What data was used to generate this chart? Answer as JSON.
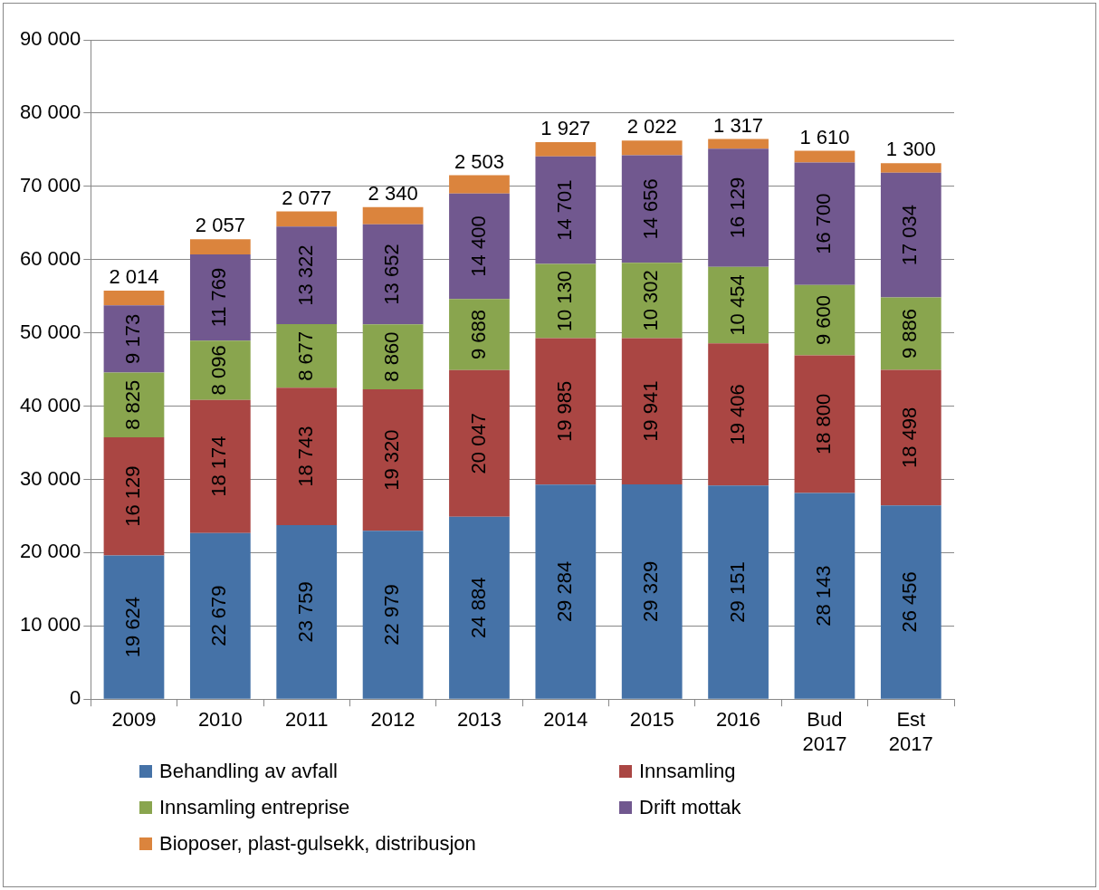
{
  "chart_data": {
    "type": "bar",
    "stacked": true,
    "data_labels": true,
    "grid": "y",
    "legend": "bottom",
    "categories": [
      "2009",
      "2010",
      "2011",
      "2012",
      "2013",
      "2014",
      "2015",
      "2016",
      "Bud 2017",
      "Est 2017"
    ],
    "ylim": [
      0,
      90000
    ],
    "yticks": [
      {
        "value": 0,
        "label": "0"
      },
      {
        "value": 10000,
        "label": "10 000"
      },
      {
        "value": 20000,
        "label": "20 000"
      },
      {
        "value": 30000,
        "label": "30 000"
      },
      {
        "value": 40000,
        "label": "40 000"
      },
      {
        "value": 50000,
        "label": "50 000"
      },
      {
        "value": 60000,
        "label": "60 000"
      },
      {
        "value": 70000,
        "label": "70 000"
      },
      {
        "value": 80000,
        "label": "80 000"
      },
      {
        "value": 90000,
        "label": "90 000"
      }
    ],
    "series": [
      {
        "name": "Behandling av avfall",
        "color": "#4572a7",
        "values": [
          19624,
          22679,
          23759,
          22979,
          24884,
          29284,
          29329,
          29151,
          28143,
          26456
        ]
      },
      {
        "name": "Innsamling",
        "color": "#aa4643",
        "values": [
          16129,
          18174,
          18743,
          19320,
          20047,
          19985,
          19941,
          19406,
          18800,
          18498
        ]
      },
      {
        "name": "Innsamling entreprise",
        "color": "#89a54e",
        "values": [
          8825,
          8096,
          8677,
          8860,
          9688,
          10130,
          10302,
          10454,
          9600,
          9886
        ]
      },
      {
        "name": "Drift mottak",
        "color": "#71588f",
        "values": [
          9173,
          11769,
          13322,
          13652,
          14400,
          14701,
          14656,
          16129,
          16700,
          17034
        ]
      },
      {
        "name": "Bioposer, plast-gulsekk, distribusjon",
        "color": "#db843d",
        "values": [
          2014,
          2057,
          2077,
          2340,
          2503,
          1927,
          2022,
          1317,
          1610,
          1300
        ]
      }
    ]
  }
}
